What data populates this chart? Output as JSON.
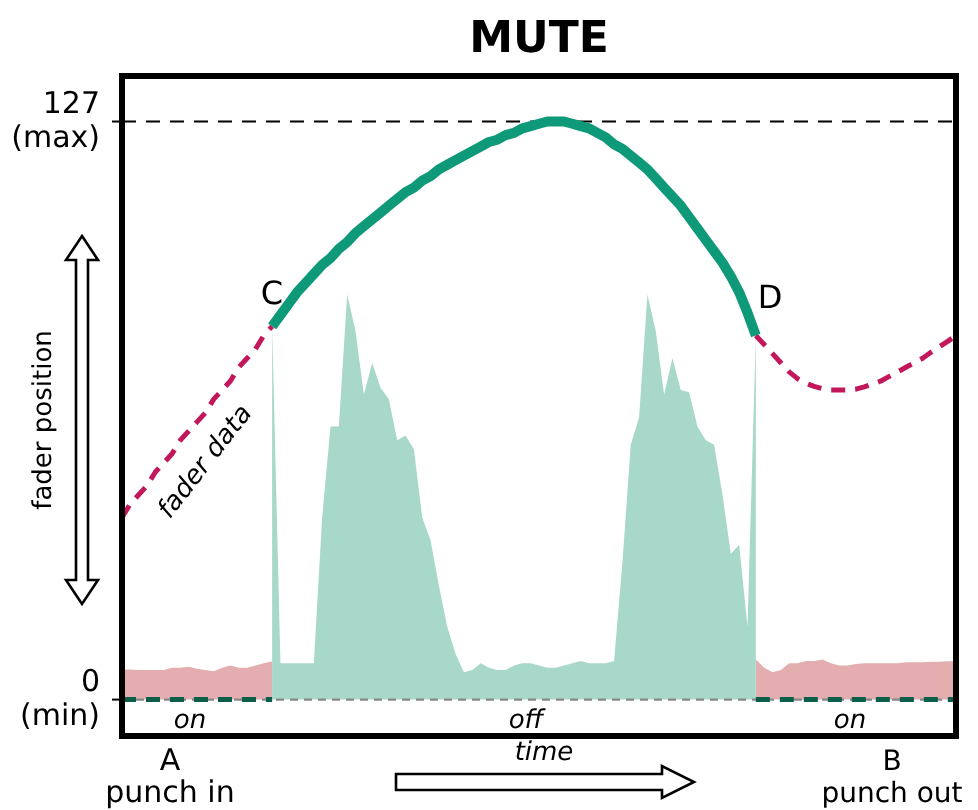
{
  "chart_data": {
    "type": "line",
    "title": "MUTE",
    "ylabel": "fader position",
    "xlabel": "time",
    "ylim": [
      -8,
      137
    ],
    "yticks": [
      {
        "value": 0,
        "label": "0 (min)"
      },
      {
        "value": 127,
        "label": "127 (max)"
      }
    ],
    "tick_labels": "y",
    "categories": [
      null,
      null,
      null,
      null,
      null,
      null,
      null,
      null,
      null,
      null,
      null,
      null,
      null,
      null,
      null,
      null,
      null,
      null,
      null,
      null,
      null,
      null,
      null,
      null,
      null,
      null,
      null,
      null,
      null,
      null,
      null,
      null,
      null,
      null,
      null,
      null,
      null,
      null,
      null,
      null,
      null,
      null,
      null,
      null,
      null,
      null,
      null,
      null,
      null,
      null,
      null,
      null,
      null,
      null,
      null,
      null,
      null,
      null,
      null,
      null,
      null,
      null,
      null,
      null,
      null,
      null,
      null,
      null,
      null,
      null,
      null,
      null,
      null,
      null,
      null,
      null,
      null,
      null,
      null,
      null,
      null,
      null,
      null,
      null,
      null,
      null,
      null,
      null,
      null,
      null,
      null,
      null,
      null,
      null,
      null,
      null,
      null,
      null,
      null,
      null,
      null
    ],
    "ref_lines": [
      {
        "axis": "y",
        "value": 127,
        "color": "#000000",
        "line_style": "dashed"
      }
    ],
    "series": [
      {
        "color": "#888888",
        "line_style": "dotted",
        "values": [
          0,
          0,
          0,
          0,
          0,
          0,
          0,
          0,
          0,
          0,
          0,
          0,
          0,
          0,
          0,
          0,
          0,
          0,
          0,
          0,
          0,
          0,
          0,
          0,
          0,
          0,
          0,
          0,
          0,
          0,
          0,
          0,
          0,
          0,
          0,
          0,
          0,
          0,
          0,
          0,
          0,
          0,
          0,
          0,
          0,
          0,
          0,
          0,
          0,
          0,
          0,
          0,
          0,
          0,
          0,
          0,
          0,
          0,
          0,
          0,
          0,
          0,
          0,
          0,
          0,
          0,
          0,
          0,
          0,
          0,
          0,
          0,
          0,
          0,
          0,
          0,
          0,
          0,
          0,
          0,
          0,
          0,
          0,
          0,
          0,
          0,
          0,
          0,
          0,
          0,
          0,
          0,
          0,
          0,
          0,
          0,
          0,
          0,
          0,
          0,
          0
        ]
      },
      {
        "type": "area",
        "color": "#e4aeb0",
        "values": [
          6.6,
          6.6,
          6.5,
          6.5,
          6.5,
          6.5,
          7,
          7,
          7.2,
          6.8,
          6.5,
          6.2,
          7,
          7.5,
          7,
          7,
          7.5,
          8,
          8.4,
          null,
          null,
          null,
          null,
          null,
          null,
          null,
          null,
          null,
          null,
          null,
          null,
          null,
          null,
          null,
          null,
          null,
          null,
          null,
          null,
          null,
          null,
          null,
          null,
          null,
          null,
          null,
          null,
          null,
          null,
          null,
          null,
          null,
          null,
          null,
          null,
          null,
          null,
          null,
          null,
          null,
          null,
          null,
          null,
          null,
          null,
          null,
          null,
          null,
          null,
          null,
          null,
          null,
          null,
          null,
          null,
          null,
          8.8,
          7,
          6,
          6.5,
          8,
          8,
          8.5,
          8.5,
          8.8,
          8,
          7.5,
          7.5,
          7.8,
          8,
          8,
          8,
          8,
          8,
          8.2,
          8.2,
          8.2,
          8.3,
          8.3,
          8.4,
          8.4
        ]
      },
      {
        "type": "area",
        "color": "#a8d8ca",
        "values": [
          null,
          null,
          null,
          null,
          null,
          null,
          null,
          null,
          null,
          null,
          null,
          null,
          null,
          null,
          null,
          null,
          null,
          null,
          82,
          8,
          8,
          8,
          8,
          8,
          40,
          60,
          60,
          89,
          81,
          67,
          74,
          68.5,
          66,
          57,
          58,
          55,
          40,
          35,
          25,
          16,
          10,
          6,
          6.5,
          8,
          7,
          6.5,
          6.5,
          7.5,
          8,
          8,
          7.5,
          7,
          7,
          7.5,
          8,
          8.5,
          8,
          8,
          8,
          8.5,
          30,
          56,
          62,
          89,
          81,
          67,
          75,
          68,
          67.5,
          60,
          57,
          56,
          45,
          32,
          34,
          16,
          80,
          null,
          null,
          null,
          null,
          null,
          null,
          null,
          null,
          null,
          null,
          null,
          null,
          null,
          null,
          null,
          null,
          null,
          null,
          null,
          null,
          null,
          null,
          null,
          null
        ]
      },
      {
        "name": "fader data",
        "color": "#c2185b",
        "line_style": "dashed",
        "values": [
          40,
          43,
          45,
          47,
          50,
          52,
          54,
          57,
          59,
          61,
          63,
          66,
          68,
          70,
          73,
          75,
          77,
          80,
          82,
          null,
          null,
          null,
          null,
          null,
          null,
          null,
          null,
          null,
          null,
          null,
          null,
          null,
          null,
          null,
          null,
          null,
          null,
          null,
          null,
          null,
          null,
          null,
          null,
          null,
          null,
          null,
          null,
          null,
          null,
          null,
          null,
          null,
          null,
          null,
          null,
          null,
          null,
          null,
          null,
          null,
          null,
          null,
          null,
          null,
          null,
          null,
          null,
          null,
          null,
          null,
          null,
          null,
          null,
          null,
          null,
          null,
          80,
          78,
          76,
          74,
          72,
          70.5,
          69.5,
          68.8,
          68.3,
          68,
          68,
          68,
          68.2,
          68.7,
          69.3,
          70,
          71,
          72,
          73,
          74,
          75,
          76.3,
          77.5,
          78.7,
          80
        ]
      },
      {
        "color": "#0e9a78",
        "line_style": "solid",
        "values": [
          null,
          null,
          null,
          null,
          null,
          null,
          null,
          null,
          null,
          null,
          null,
          null,
          null,
          null,
          null,
          null,
          null,
          null,
          82,
          84.5,
          87,
          89.5,
          91.5,
          93.5,
          95.5,
          97,
          99,
          100.5,
          102.5,
          104,
          105.5,
          107,
          108.5,
          110,
          111.5,
          112.5,
          114,
          115,
          116.5,
          117.5,
          118.5,
          119.5,
          120.5,
          121.5,
          122.5,
          123,
          124,
          124.5,
          125.5,
          126,
          126.5,
          127,
          127,
          127,
          126.5,
          126,
          125.5,
          124.5,
          123.5,
          122,
          121,
          119.5,
          118,
          116.5,
          114.5,
          112.5,
          110.5,
          108.5,
          106,
          103.5,
          101,
          98.5,
          96,
          93,
          89.5,
          85,
          80,
          null,
          null,
          null,
          null,
          null,
          null,
          null,
          null,
          null,
          null,
          null,
          null,
          null,
          null,
          null,
          null,
          null,
          null,
          null,
          null,
          null,
          null,
          null,
          null
        ]
      },
      {
        "color": "#0b5e4a",
        "line_style": "dashed",
        "values": [
          0,
          0,
          0,
          0,
          0,
          0,
          0,
          0,
          0,
          0,
          0,
          0,
          0,
          0,
          0,
          0,
          0,
          0,
          0,
          null,
          null,
          null,
          null,
          null,
          null,
          null,
          null,
          null,
          null,
          null,
          null,
          null,
          null,
          null,
          null,
          null,
          null,
          null,
          null,
          null,
          null,
          null,
          null,
          null,
          null,
          null,
          null,
          null,
          null,
          null,
          null,
          null,
          null,
          null,
          null,
          null,
          null,
          null,
          null,
          null,
          null,
          null,
          null,
          null,
          null,
          null,
          null,
          null,
          null,
          null,
          null,
          null,
          null,
          null,
          null,
          null,
          0,
          0,
          0,
          0,
          0,
          0,
          0,
          0,
          0,
          0,
          0,
          0,
          0,
          0,
          0,
          0,
          0,
          0,
          0,
          0,
          0,
          0,
          0,
          0,
          0
        ]
      }
    ],
    "annotations": [
      "C",
      "D",
      "on",
      "off",
      "on",
      "A punch in",
      "B punch out"
    ]
  }
}
